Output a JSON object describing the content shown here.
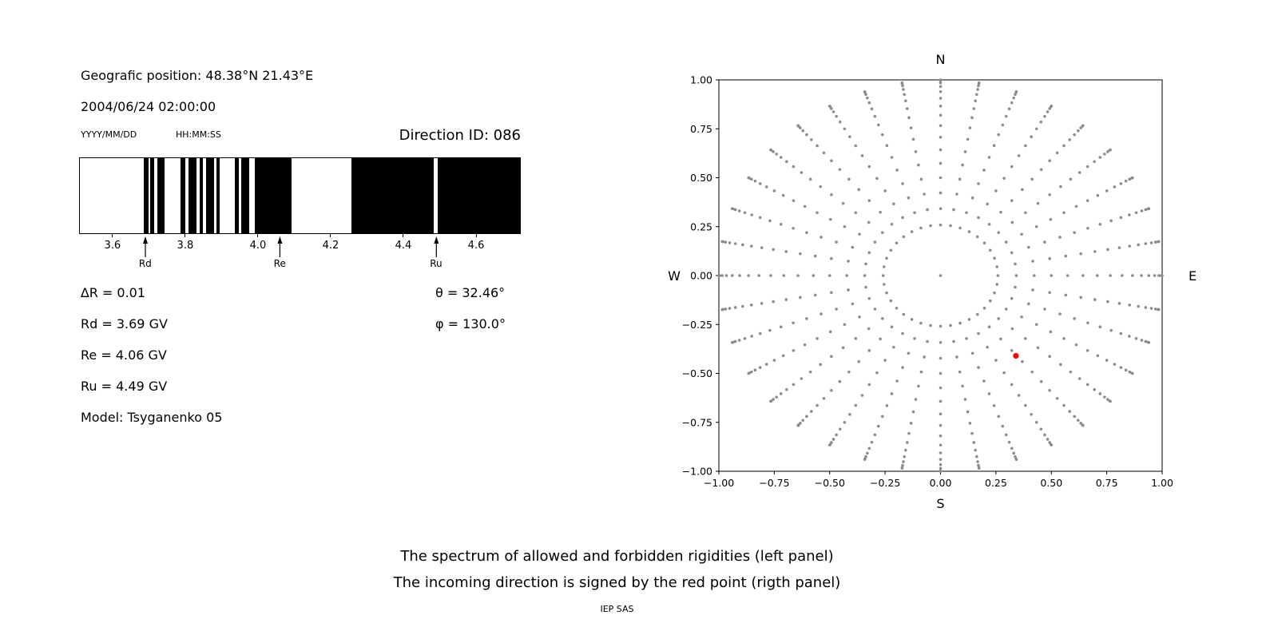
{
  "figure": {
    "background": "#ffffff",
    "text_color": "#000000"
  },
  "left_panel": {
    "position_label": "Geografic position: 48.38°N 21.43°E",
    "datetime": "2004/06/24 02:00:00",
    "date_format_label": "YYYY/MM/DD",
    "time_format_label": "HH:MM:SS",
    "direction_id_label": "Direction ID: 086",
    "params": {
      "delta_r": "∆R = 0.01",
      "theta": "θ = 32.46°",
      "rd": "Rd = 3.69 GV",
      "phi": "φ = 130.0°",
      "re": "Re = 4.06 GV",
      "ru": "Ru = 4.49 GV",
      "model": "Model: Tsyganenko 05"
    }
  },
  "caption": {
    "line1": "The spectrum of allowed and forbidden rigidities (left panel)",
    "line2": "The incoming direction is signed by the red point (rigth panel)",
    "credit": "IEP SAS"
  },
  "chart_data": [
    {
      "id": "rigidity-spectrum",
      "type": "bar",
      "description": "Binary rigidity spectrum: black bands = forbidden rigidities, white = allowed",
      "xlim": [
        3.508,
        4.723
      ],
      "xticks": [
        3.6,
        3.8,
        4.0,
        4.2,
        4.4,
        4.6
      ],
      "band_color": "#000000",
      "forbidden_bands_gv": [
        [
          3.685,
          3.697
        ],
        [
          3.702,
          3.712
        ],
        [
          3.722,
          3.741
        ],
        [
          3.786,
          3.799
        ],
        [
          3.808,
          3.83
        ],
        [
          3.839,
          3.848
        ],
        [
          3.856,
          3.878
        ],
        [
          3.884,
          3.895
        ],
        [
          3.935,
          3.946
        ],
        [
          3.953,
          3.975
        ],
        [
          3.99,
          4.092
        ],
        [
          4.258,
          4.484
        ],
        [
          4.496,
          4.723
        ]
      ],
      "cutoffs": [
        {
          "label": "Rd",
          "value": 3.69
        },
        {
          "label": "Re",
          "value": 4.06
        },
        {
          "label": "Ru",
          "value": 4.49
        }
      ]
    },
    {
      "id": "direction-map",
      "type": "scatter",
      "xlim": [
        -1,
        1
      ],
      "ylim": [
        -1,
        1
      ],
      "xticks": [
        -1.0,
        -0.75,
        -0.5,
        -0.25,
        0.0,
        0.25,
        0.5,
        0.75,
        1.0
      ],
      "yticks": [
        -1.0,
        -0.75,
        -0.5,
        -0.25,
        0.0,
        0.25,
        0.5,
        0.75,
        1.0
      ],
      "compass_labels": {
        "top": "N",
        "bottom": "S",
        "left": "W",
        "right": "E"
      },
      "grid_dots": {
        "color": "#8c8c8c",
        "azimuth_start_deg": 0,
        "azimuth_step_deg": 10,
        "azimuth_count": 36,
        "zenith_angles_deg": [
          15,
          20,
          25,
          30,
          35,
          40,
          45,
          50,
          55,
          60,
          65,
          70,
          75,
          80,
          85,
          90
        ],
        "radius_rule": "sin(zenith)",
        "include_center_dot": true
      },
      "red_point": {
        "x": 0.34,
        "y": -0.41,
        "color": "#ff0000"
      }
    }
  ]
}
